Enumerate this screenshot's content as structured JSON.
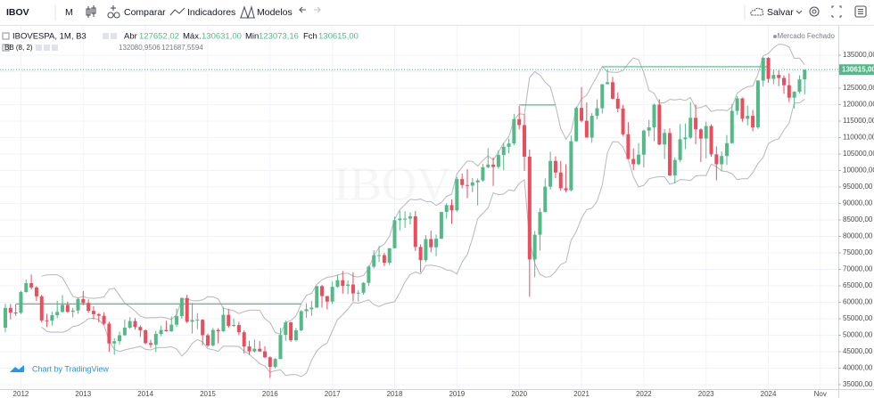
{
  "toolbar": {
    "symbol": "IBOV",
    "interval": "M",
    "compare": "Comparar",
    "indicators": "Indicadores",
    "templates": "Modelos",
    "save": "Salvar"
  },
  "legend": {
    "title": "IBOVESPA, 1M, B3",
    "open_label": "Abr",
    "open": "127652,02",
    "high_label": "Máx.",
    "high": "130631,00",
    "low_label": "Min",
    "low": "123073,16",
    "close_label": "Fch",
    "close": "130615,00",
    "indicator": "BB (8, 2)",
    "indicator_values": [
      "132080,9506",
      "121687,5594"
    ],
    "status": "Mercado Fechado"
  },
  "branding": "Chart by TradingView",
  "chart_data": {
    "type": "candlestick",
    "watermark": "IBOV",
    "categories": [
      null,
      null,
      null,
      "2012",
      null,
      null,
      null,
      null,
      null,
      null,
      null,
      null,
      null,
      null,
      null,
      "2013",
      null,
      null,
      null,
      null,
      null,
      null,
      null,
      null,
      null,
      null,
      null,
      "2014",
      null,
      null,
      null,
      null,
      null,
      null,
      null,
      null,
      null,
      null,
      null,
      "2015",
      null,
      null,
      null,
      null,
      null,
      null,
      null,
      null,
      null,
      null,
      null,
      "2016",
      null,
      null,
      null,
      null,
      null,
      null,
      null,
      null,
      null,
      null,
      null,
      "2017",
      null,
      null,
      null,
      null,
      null,
      null,
      null,
      null,
      null,
      null,
      null,
      "2018",
      null,
      null,
      null,
      null,
      null,
      null,
      null,
      null,
      null,
      null,
      null,
      "2019",
      null,
      null,
      null,
      null,
      null,
      null,
      null,
      null,
      null,
      null,
      null,
      "2020",
      null,
      null,
      null,
      null,
      null,
      null,
      null,
      null,
      null,
      null,
      null,
      "2021",
      null,
      null,
      null,
      null,
      null,
      null,
      null,
      null,
      null,
      null,
      null,
      "2022",
      null,
      null,
      null,
      null,
      null,
      null,
      null,
      null,
      null,
      null,
      null,
      "2023",
      null,
      null,
      null,
      null,
      null,
      null,
      null,
      null,
      null,
      null,
      null,
      "2024",
      null,
      null,
      null,
      null,
      null,
      null,
      null,
      null,
      null,
      "Nov"
    ],
    "ohlc": [
      [
        52300,
        59600,
        50900,
        58300
      ],
      [
        58300,
        59500,
        54800,
        56900
      ],
      [
        56900,
        59400,
        55900,
        56800
      ],
      [
        56800,
        63500,
        56400,
        63100
      ],
      [
        63100,
        66900,
        62900,
        65800
      ],
      [
        65800,
        68400,
        63900,
        64500
      ],
      [
        64500,
        64900,
        60400,
        61800
      ],
      [
        61800,
        62300,
        53900,
        54500
      ],
      [
        54500,
        56500,
        52500,
        54400
      ],
      [
        54400,
        57200,
        52900,
        56100
      ],
      [
        56100,
        60400,
        55200,
        57100
      ],
      [
        57100,
        62200,
        56900,
        59200
      ],
      [
        59200,
        60200,
        56800,
        57100
      ],
      [
        57100,
        58300,
        55400,
        57500
      ],
      [
        57500,
        61400,
        56500,
        61000
      ],
      [
        61000,
        63400,
        59100,
        59800
      ],
      [
        59800,
        60900,
        56800,
        57400
      ],
      [
        57400,
        58800,
        54800,
        56400
      ],
      [
        56400,
        56800,
        53900,
        55900
      ],
      [
        55900,
        57000,
        53100,
        53500
      ],
      [
        53500,
        54100,
        45000,
        47500
      ],
      [
        47500,
        49100,
        44100,
        48200
      ],
      [
        48200,
        51100,
        47200,
        50000
      ],
      [
        50000,
        54700,
        49800,
        52300
      ],
      [
        52300,
        55500,
        51900,
        54300
      ],
      [
        54300,
        55200,
        51700,
        52500
      ],
      [
        52500,
        53000,
        49500,
        51500
      ],
      [
        51500,
        51800,
        47300,
        47600
      ],
      [
        47600,
        48600,
        46200,
        47100
      ],
      [
        47100,
        51300,
        44900,
        50400
      ],
      [
        50400,
        52900,
        49700,
        51600
      ],
      [
        51600,
        54400,
        51100,
        51200
      ],
      [
        51200,
        55700,
        51000,
        53200
      ],
      [
        53200,
        58100,
        52500,
        55800
      ],
      [
        55800,
        61500,
        55000,
        61300
      ],
      [
        61300,
        62300,
        53700,
        54100
      ],
      [
        54100,
        59800,
        50500,
        54600
      ],
      [
        54600,
        56700,
        51800,
        54700
      ],
      [
        54700,
        54900,
        47000,
        50000
      ],
      [
        50000,
        50500,
        46400,
        46900
      ],
      [
        46900,
        52200,
        46600,
        51600
      ],
      [
        51600,
        52100,
        47500,
        51200
      ],
      [
        51200,
        58600,
        51000,
        56200
      ],
      [
        56200,
        58000,
        52200,
        52800
      ],
      [
        52800,
        55100,
        52500,
        53100
      ],
      [
        53100,
        54100,
        50000,
        50900
      ],
      [
        50900,
        51500,
        44500,
        46600
      ],
      [
        46600,
        48300,
        44000,
        45100
      ],
      [
        45100,
        48700,
        44700,
        45900
      ],
      [
        45900,
        48200,
        45000,
        45100
      ],
      [
        45100,
        46700,
        43000,
        43300
      ],
      [
        43300,
        43600,
        37000,
        40400
      ],
      [
        40400,
        43100,
        39900,
        42800
      ],
      [
        42800,
        52200,
        42700,
        50100
      ],
      [
        50100,
        54500,
        48300,
        53900
      ],
      [
        53900,
        54100,
        48000,
        48500
      ],
      [
        48500,
        52200,
        48100,
        51500
      ],
      [
        51500,
        57600,
        51200,
        57300
      ],
      [
        57300,
        59700,
        55300,
        57900
      ],
      [
        57900,
        60400,
        55900,
        58400
      ],
      [
        58400,
        64900,
        58200,
        64900
      ],
      [
        64900,
        65300,
        58400,
        61900
      ],
      [
        61900,
        61900,
        57800,
        60200
      ],
      [
        60200,
        66300,
        59400,
        64700
      ],
      [
        64700,
        68400,
        64400,
        66700
      ],
      [
        66700,
        69500,
        62600,
        65000
      ],
      [
        65000,
        66600,
        62500,
        65400
      ],
      [
        65400,
        69100,
        60300,
        62700
      ],
      [
        62700,
        63700,
        60200,
        62900
      ],
      [
        62900,
        66100,
        62300,
        65900
      ],
      [
        65900,
        71200,
        65000,
        70800
      ],
      [
        70800,
        75800,
        70300,
        74300
      ],
      [
        74300,
        77100,
        72200,
        74300
      ],
      [
        74300,
        75000,
        71000,
        72000
      ],
      [
        72000,
        76500,
        71300,
        76400
      ],
      [
        76400,
        86000,
        76400,
        84900
      ],
      [
        84900,
        87800,
        81800,
        85400
      ],
      [
        85400,
        87600,
        82600,
        85400
      ],
      [
        85400,
        87300,
        83600,
        86100
      ],
      [
        86100,
        87700,
        75600,
        76800
      ],
      [
        76800,
        77600,
        69100,
        72800
      ],
      [
        72800,
        80400,
        72200,
        79200
      ],
      [
        79200,
        81700,
        75200,
        76700
      ],
      [
        76700,
        80600,
        74000,
        79300
      ],
      [
        79300,
        87500,
        79200,
        87400
      ],
      [
        87400,
        90000,
        85400,
        89500
      ],
      [
        89500,
        91200,
        83800,
        87900
      ],
      [
        87900,
        98000,
        87500,
        97400
      ],
      [
        97400,
        99100,
        94600,
        95600
      ],
      [
        95600,
        100400,
        91600,
        95400
      ],
      [
        95400,
        97700,
        93400,
        96400
      ],
      [
        96400,
        97600,
        89400,
        97000
      ],
      [
        97000,
        102000,
        96600,
        101000
      ],
      [
        101000,
        106700,
        100700,
        101800
      ],
      [
        101800,
        104000,
        95300,
        101100
      ],
      [
        101100,
        106000,
        100500,
        104700
      ],
      [
        104700,
        108400,
        100100,
        107200
      ],
      [
        107200,
        109700,
        105200,
        108200
      ],
      [
        108200,
        117200,
        107700,
        115600
      ],
      [
        115600,
        119600,
        112500,
        113800
      ],
      [
        113800,
        117100,
        99900,
        104200
      ],
      [
        104200,
        106400,
        61700,
        73000
      ],
      [
        73000,
        81600,
        67600,
        80500
      ],
      [
        80500,
        88600,
        75700,
        87400
      ],
      [
        87400,
        97600,
        87300,
        95100
      ],
      [
        95100,
        105700,
        94200,
        102900
      ],
      [
        102900,
        104300,
        97700,
        99400
      ],
      [
        99400,
        102900,
        93900,
        94600
      ],
      [
        94600,
        101900,
        93400,
        94000
      ],
      [
        94000,
        110600,
        93700,
        108900
      ],
      [
        108900,
        119400,
        108700,
        119000
      ],
      [
        119000,
        125300,
        114600,
        115100
      ],
      [
        115100,
        120700,
        110000,
        110000
      ],
      [
        110000,
        117400,
        108400,
        116600
      ],
      [
        116600,
        121600,
        115600,
        118900
      ],
      [
        118900,
        126200,
        117300,
        126200
      ],
      [
        126200,
        130800,
        126200,
        126800
      ],
      [
        126800,
        128400,
        121600,
        121800
      ],
      [
        121800,
        123700,
        117700,
        118800
      ],
      [
        118800,
        119900,
        110500,
        111000
      ],
      [
        111000,
        114700,
        103500,
        103500
      ],
      [
        103500,
        106700,
        100100,
        101900
      ],
      [
        101900,
        108300,
        101600,
        104800
      ],
      [
        104800,
        112400,
        100900,
        112100
      ],
      [
        112100,
        115400,
        110300,
        113100
      ],
      [
        113100,
        120300,
        108900,
        120000
      ],
      [
        120000,
        121600,
        107700,
        107900
      ],
      [
        107900,
        112600,
        103500,
        111400
      ],
      [
        111400,
        112800,
        98300,
        98500
      ],
      [
        98500,
        104000,
        96100,
        103200
      ],
      [
        103200,
        114100,
        102600,
        109500
      ],
      [
        109500,
        114300,
        106500,
        110000
      ],
      [
        110000,
        120800,
        109600,
        116000
      ],
      [
        116000,
        120000,
        108000,
        112500
      ],
      [
        112500,
        112800,
        102600,
        109700
      ],
      [
        109700,
        114800,
        103700,
        113500
      ],
      [
        113500,
        114000,
        104200,
        104900
      ],
      [
        104900,
        107300,
        97000,
        101900
      ],
      [
        101900,
        105800,
        99800,
        104400
      ],
      [
        104400,
        110800,
        101700,
        108300
      ],
      [
        108300,
        120200,
        108100,
        118100
      ],
      [
        118100,
        122600,
        116900,
        121900
      ],
      [
        121900,
        122100,
        114800,
        115700
      ],
      [
        115700,
        119700,
        113700,
        116600
      ],
      [
        116600,
        118400,
        111900,
        113100
      ],
      [
        113100,
        127400,
        112600,
        127300
      ],
      [
        127300,
        134400,
        125500,
        134200
      ],
      [
        134200,
        134400,
        126600,
        127800
      ],
      [
        127800,
        130600,
        126200,
        129000
      ],
      [
        129000,
        130400,
        125600,
        128100
      ],
      [
        128100,
        128900,
        123300,
        125900
      ],
      [
        125900,
        129500,
        120800,
        122100
      ],
      [
        122100,
        124100,
        118800,
        123900
      ],
      [
        123900,
        128900,
        123400,
        127652.02
      ],
      [
        127652.02,
        130631,
        123073.16,
        130615
      ],
      null,
      null,
      null
    ],
    "up_color": "#53b987",
    "down_color": "#eb4d5c",
    "ylim": [
      33650,
      143650
    ],
    "yticks": [
      {
        "value": 35000,
        "label": "35000,00"
      },
      {
        "value": 40000,
        "label": "40000,00"
      },
      {
        "value": 45000,
        "label": "45000,00"
      },
      {
        "value": 50000,
        "label": "50000,00"
      },
      {
        "value": 55000,
        "label": "55000,00"
      },
      {
        "value": 60000,
        "label": "60000,00"
      },
      {
        "value": 65000,
        "label": "65000,00"
      },
      {
        "value": 70000,
        "label": "70000,00"
      },
      {
        "value": 75000,
        "label": "75000,00"
      },
      {
        "value": 80000,
        "label": "80000,00"
      },
      {
        "value": 85000,
        "label": "85000,00"
      },
      {
        "value": 90000,
        "label": "90000,00"
      },
      {
        "value": 95000,
        "label": "95000,00"
      },
      {
        "value": 100000,
        "label": "100000,00"
      },
      {
        "value": 105000,
        "label": "105000,00"
      },
      {
        "value": 110000,
        "label": "110000,00"
      },
      {
        "value": 115000,
        "label": "115000,00"
      },
      {
        "value": 120000,
        "label": "120000,00"
      },
      {
        "value": 125000,
        "label": "125000,00"
      },
      {
        "value": 130000,
        "label": "130000,00"
      },
      {
        "value": 135000,
        "label": "135000,00"
      }
    ],
    "grid": true,
    "bollinger": {
      "period": 8,
      "mult": 2,
      "color": "#b8b8b8"
    },
    "horizontal_lines": [
      {
        "value": 59500,
        "x": [
          2,
          57
        ],
        "color": "#53b987"
      },
      {
        "value": 119900,
        "x": [
          99,
          106
        ],
        "color": "#53b987"
      },
      {
        "value": 131500,
        "x": [
          115,
          147
        ],
        "color": "#53b987"
      }
    ],
    "last_price": {
      "value": 130615,
      "label": "130615,00",
      "color": "#53b987"
    }
  }
}
